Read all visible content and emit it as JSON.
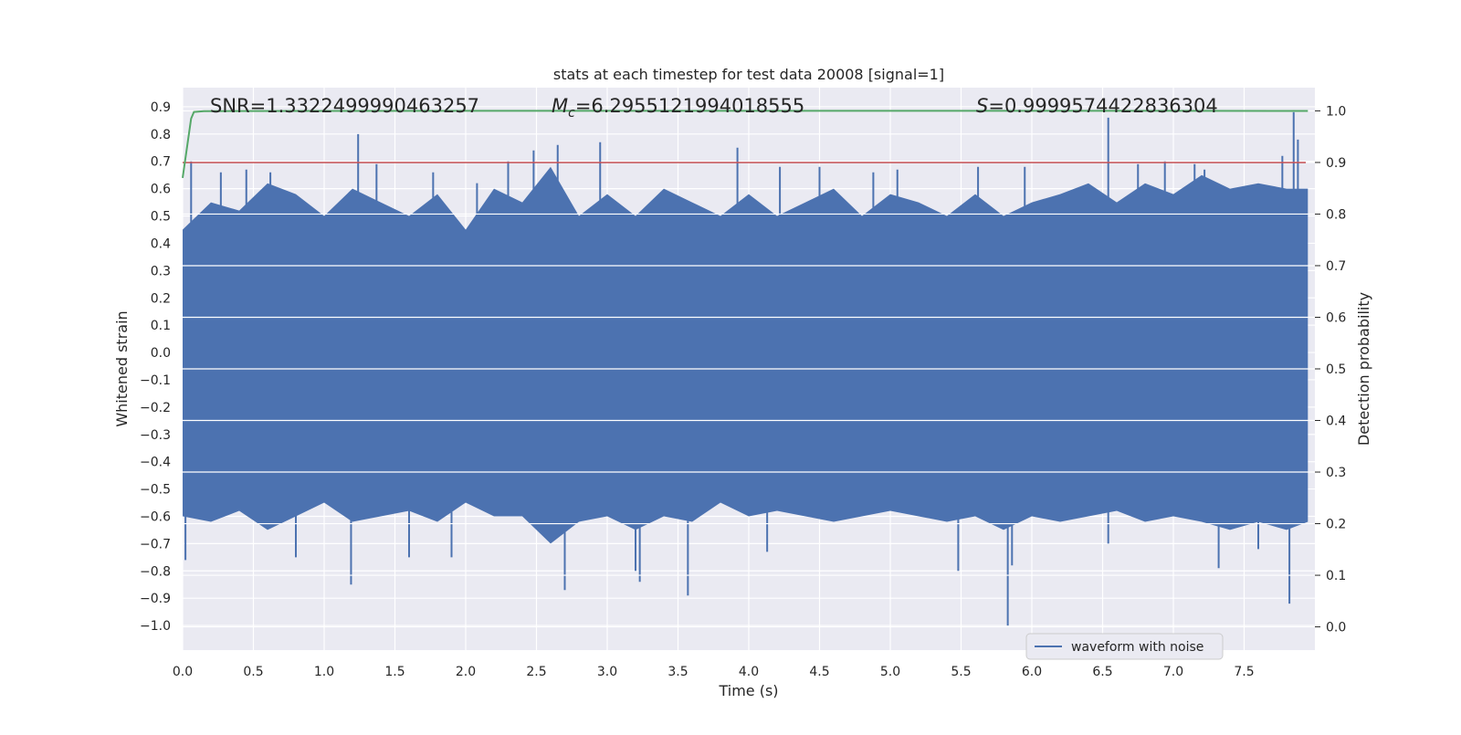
{
  "chart_data": {
    "type": "line",
    "title": "stats at each timestep for test data 20008 [signal=1]",
    "xlabel": "Time (s)",
    "ylabel": "Whitened strain",
    "y2label": "Detection probability",
    "xlim": [
      0.0,
      8.0
    ],
    "ylim": [
      -1.09,
      0.97
    ],
    "y2lim": [
      -0.045,
      1.045
    ],
    "x_ticks": [
      0.0,
      0.5,
      1.0,
      1.5,
      2.0,
      2.5,
      3.0,
      3.5,
      4.0,
      4.5,
      5.0,
      5.5,
      6.0,
      6.5,
      7.0,
      7.5
    ],
    "x_tick_labels": [
      "0.0",
      "0.5",
      "1.0",
      "1.5",
      "2.0",
      "2.5",
      "3.0",
      "3.5",
      "4.0",
      "4.5",
      "5.0",
      "5.5",
      "6.0",
      "6.5",
      "7.0",
      "7.5"
    ],
    "y_ticks": [
      0.9,
      0.8,
      0.7,
      0.6,
      0.5,
      0.4,
      0.3,
      0.2,
      0.1,
      0.0,
      -0.1,
      -0.2,
      -0.3,
      -0.4,
      -0.5,
      -0.6,
      -0.7,
      -0.8,
      -0.9,
      -1.0
    ],
    "y_tick_labels": [
      "0.9",
      "0.8",
      "0.7",
      "0.6",
      "0.5",
      "0.4",
      "0.3",
      "0.2",
      "0.1",
      "0.0",
      "−0.1",
      "−0.2",
      "−0.3",
      "−0.4",
      "−0.5",
      "−0.6",
      "−0.7",
      "−0.8",
      "−0.9",
      "−1.0"
    ],
    "y2_ticks": [
      1.0,
      0.9,
      0.8,
      0.7,
      0.6,
      0.5,
      0.4,
      0.3,
      0.2,
      0.1,
      0.0
    ],
    "y2_tick_labels": [
      "1.0",
      "0.9",
      "0.8",
      "0.7",
      "0.6",
      "0.5",
      "0.4",
      "0.3",
      "0.2",
      "0.1",
      "0.0"
    ],
    "annotations": {
      "snr": "SNR=1.3322499990463257",
      "mc_symbol": "M",
      "mc_sub": "c",
      "mc_value": "=6.2955121994018555",
      "s_symbol": "S",
      "s_value": "=0.9999574422836304"
    },
    "threshold_line": {
      "axis": "right",
      "value": 0.9,
      "color": "#c44e52"
    },
    "series": [
      {
        "name": "waveform with noise",
        "axis": "left",
        "color": "#4c72b0",
        "envelope_upper": {
          "x": [
            0.0,
            0.2,
            0.4,
            0.6,
            0.8,
            1.0,
            1.2,
            1.4,
            1.6,
            1.8,
            2.0,
            2.2,
            2.4,
            2.6,
            2.8,
            3.0,
            3.2,
            3.4,
            3.6,
            3.8,
            4.0,
            4.2,
            4.4,
            4.6,
            4.8,
            5.0,
            5.2,
            5.4,
            5.6,
            5.8,
            6.0,
            6.2,
            6.4,
            6.6,
            6.8,
            7.0,
            7.2,
            7.4,
            7.6,
            7.8,
            7.95
          ],
          "y": [
            0.45,
            0.55,
            0.52,
            0.62,
            0.58,
            0.5,
            0.6,
            0.55,
            0.5,
            0.58,
            0.45,
            0.6,
            0.55,
            0.68,
            0.5,
            0.58,
            0.5,
            0.6,
            0.55,
            0.5,
            0.58,
            0.5,
            0.55,
            0.6,
            0.5,
            0.58,
            0.55,
            0.5,
            0.58,
            0.5,
            0.55,
            0.58,
            0.62,
            0.55,
            0.62,
            0.58,
            0.65,
            0.6,
            0.62,
            0.6,
            0.6
          ]
        },
        "envelope_lower": {
          "x": [
            0.0,
            0.2,
            0.4,
            0.6,
            0.8,
            1.0,
            1.2,
            1.4,
            1.6,
            1.8,
            2.0,
            2.2,
            2.4,
            2.6,
            2.8,
            3.0,
            3.2,
            3.4,
            3.6,
            3.8,
            4.0,
            4.2,
            4.4,
            4.6,
            4.8,
            5.0,
            5.2,
            5.4,
            5.6,
            5.8,
            6.0,
            6.2,
            6.4,
            6.6,
            6.8,
            7.0,
            7.2,
            7.4,
            7.6,
            7.8,
            7.95
          ],
          "y": [
            -0.6,
            -0.62,
            -0.58,
            -0.65,
            -0.6,
            -0.55,
            -0.62,
            -0.6,
            -0.58,
            -0.62,
            -0.55,
            -0.6,
            -0.6,
            -0.7,
            -0.62,
            -0.6,
            -0.65,
            -0.6,
            -0.62,
            -0.55,
            -0.6,
            -0.58,
            -0.6,
            -0.62,
            -0.6,
            -0.58,
            -0.6,
            -0.62,
            -0.6,
            -0.65,
            -0.6,
            -0.62,
            -0.6,
            -0.58,
            -0.62,
            -0.6,
            -0.62,
            -0.65,
            -0.62,
            -0.65,
            -0.62
          ]
        },
        "spikes": [
          {
            "x": 0.02,
            "y": -0.76
          },
          {
            "x": 0.06,
            "y": 0.7
          },
          {
            "x": 0.27,
            "y": 0.66
          },
          {
            "x": 0.45,
            "y": 0.67
          },
          {
            "x": 0.62,
            "y": 0.66
          },
          {
            "x": 0.8,
            "y": -0.75
          },
          {
            "x": 1.19,
            "y": -0.85
          },
          {
            "x": 1.24,
            "y": 0.8
          },
          {
            "x": 1.37,
            "y": 0.69
          },
          {
            "x": 1.6,
            "y": -0.75
          },
          {
            "x": 1.77,
            "y": 0.66
          },
          {
            "x": 1.9,
            "y": -0.75
          },
          {
            "x": 2.08,
            "y": 0.62
          },
          {
            "x": 2.3,
            "y": 0.7
          },
          {
            "x": 2.48,
            "y": 0.74
          },
          {
            "x": 2.65,
            "y": 0.76
          },
          {
            "x": 2.7,
            "y": -0.87
          },
          {
            "x": 2.95,
            "y": 0.77
          },
          {
            "x": 3.2,
            "y": -0.8
          },
          {
            "x": 3.23,
            "y": -0.84
          },
          {
            "x": 3.57,
            "y": -0.89
          },
          {
            "x": 3.92,
            "y": 0.75
          },
          {
            "x": 4.13,
            "y": -0.73
          },
          {
            "x": 4.22,
            "y": 0.68
          },
          {
            "x": 4.5,
            "y": 0.68
          },
          {
            "x": 4.88,
            "y": 0.66
          },
          {
            "x": 5.05,
            "y": 0.67
          },
          {
            "x": 5.48,
            "y": -0.8
          },
          {
            "x": 5.62,
            "y": 0.68
          },
          {
            "x": 5.83,
            "y": -1.0
          },
          {
            "x": 5.86,
            "y": -0.78
          },
          {
            "x": 5.95,
            "y": 0.68
          },
          {
            "x": 6.54,
            "y": 0.86
          },
          {
            "x": 6.54,
            "y": -0.7
          },
          {
            "x": 6.75,
            "y": 0.69
          },
          {
            "x": 6.94,
            "y": 0.7
          },
          {
            "x": 7.15,
            "y": 0.69
          },
          {
            "x": 7.22,
            "y": 0.67
          },
          {
            "x": 7.32,
            "y": -0.79
          },
          {
            "x": 7.6,
            "y": -0.72
          },
          {
            "x": 7.77,
            "y": 0.72
          },
          {
            "x": 7.82,
            "y": -0.92
          },
          {
            "x": 7.85,
            "y": 0.88
          },
          {
            "x": 7.88,
            "y": 0.78
          }
        ]
      },
      {
        "axis": "right",
        "color": "#55a868",
        "x": [
          0.0,
          0.06,
          0.08,
          0.15,
          1.0,
          2.0,
          3.0,
          4.0,
          5.0,
          6.0,
          7.0,
          7.95
        ],
        "y": [
          0.87,
          0.985,
          0.998,
          0.9995,
          0.9999,
          1.0,
          1.0,
          1.0,
          1.0,
          1.0,
          1.0,
          0.99996
        ]
      }
    ],
    "legend": {
      "position": "lower-right",
      "entries": [
        "waveform with noise"
      ]
    },
    "grid": true,
    "style": {
      "background": "#eaeaf2",
      "grid_color": "#ffffff",
      "text_color": "#262626"
    }
  }
}
